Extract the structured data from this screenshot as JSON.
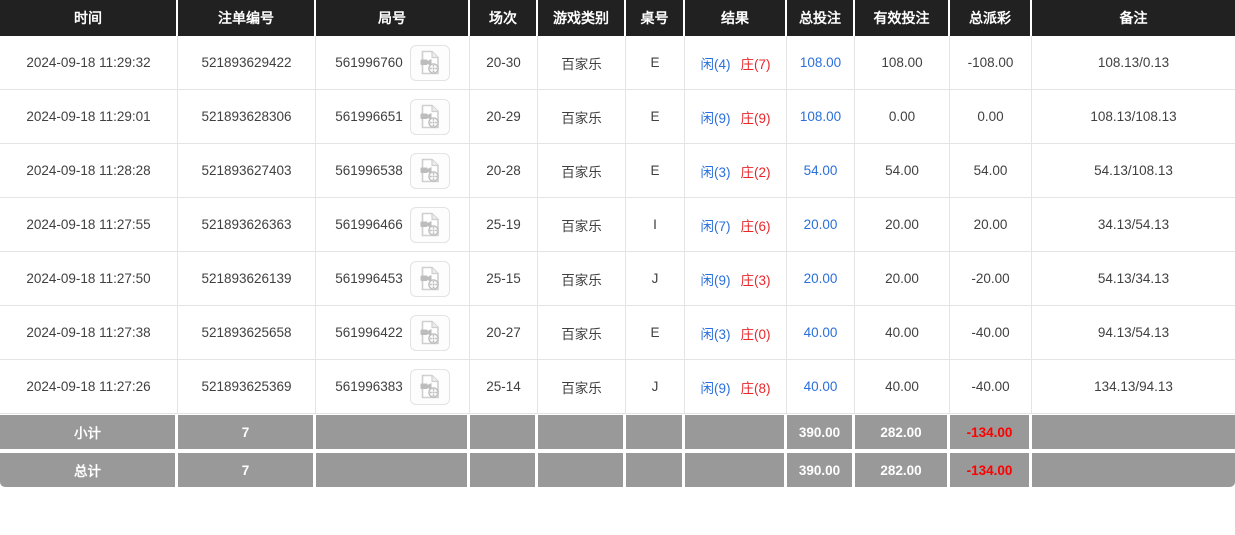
{
  "colors": {
    "header_bg": "#212121",
    "header_text": "#ffffff",
    "row_text": "#404040",
    "link_blue": "#2a6fdb",
    "negative_red": "#e8262a",
    "summary_bg": "#999999",
    "summary_text": "#ffffff",
    "summary_red": "#ff0000",
    "grid_border": "#e4e4e4"
  },
  "table": {
    "columns": [
      {
        "key": "time",
        "label": "时间"
      },
      {
        "key": "bet-id",
        "label": "注单编号"
      },
      {
        "key": "round-no",
        "label": "局号"
      },
      {
        "key": "session",
        "label": "场次"
      },
      {
        "key": "game-type",
        "label": "游戏类别"
      },
      {
        "key": "table-no",
        "label": "桌号"
      },
      {
        "key": "result",
        "label": "结果"
      },
      {
        "key": "total-bet",
        "label": "总投注"
      },
      {
        "key": "valid-bet",
        "label": "有效投注"
      },
      {
        "key": "total-payout",
        "label": "总派彩"
      },
      {
        "key": "remark",
        "label": "备注"
      }
    ],
    "video_icon": "video-replay-icon",
    "rows": [
      {
        "time": "2024-09-18 11:29:32",
        "bet_id": "521893629422",
        "round_no": "561996760",
        "session": "20-30",
        "game_type": "百家乐",
        "table_no": "E",
        "result": {
          "player": "闲(4)",
          "banker": "庄(7)"
        },
        "total_bet": "108.00",
        "valid_bet": "108.00",
        "total_payout": "-108.00",
        "remark": "108.13/0.13"
      },
      {
        "time": "2024-09-18 11:29:01",
        "bet_id": "521893628306",
        "round_no": "561996651",
        "session": "20-29",
        "game_type": "百家乐",
        "table_no": "E",
        "result": {
          "player": "闲(9)",
          "banker": "庄(9)"
        },
        "total_bet": "108.00",
        "valid_bet": "0.00",
        "total_payout": "0.00",
        "remark": "108.13/108.13"
      },
      {
        "time": "2024-09-18 11:28:28",
        "bet_id": "521893627403",
        "round_no": "561996538",
        "session": "20-28",
        "game_type": "百家乐",
        "table_no": "E",
        "result": {
          "player": "闲(3)",
          "banker": "庄(2)"
        },
        "total_bet": "54.00",
        "valid_bet": "54.00",
        "total_payout": "54.00",
        "remark": "54.13/108.13"
      },
      {
        "time": "2024-09-18 11:27:55",
        "bet_id": "521893626363",
        "round_no": "561996466",
        "session": "25-19",
        "game_type": "百家乐",
        "table_no": "I",
        "result": {
          "player": "闲(7)",
          "banker": "庄(6)"
        },
        "total_bet": "20.00",
        "valid_bet": "20.00",
        "total_payout": "20.00",
        "remark": "34.13/54.13"
      },
      {
        "time": "2024-09-18 11:27:50",
        "bet_id": "521893626139",
        "round_no": "561996453",
        "session": "25-15",
        "game_type": "百家乐",
        "table_no": "J",
        "result": {
          "player": "闲(9)",
          "banker": "庄(3)"
        },
        "total_bet": "20.00",
        "valid_bet": "20.00",
        "total_payout": "-20.00",
        "remark": "54.13/34.13"
      },
      {
        "time": "2024-09-18 11:27:38",
        "bet_id": "521893625658",
        "round_no": "561996422",
        "session": "20-27",
        "game_type": "百家乐",
        "table_no": "E",
        "result": {
          "player": "闲(3)",
          "banker": "庄(0)"
        },
        "total_bet": "40.00",
        "valid_bet": "40.00",
        "total_payout": "-40.00",
        "remark": "94.13/54.13"
      },
      {
        "time": "2024-09-18 11:27:26",
        "bet_id": "521893625369",
        "round_no": "561996383",
        "session": "25-14",
        "game_type": "百家乐",
        "table_no": "J",
        "result": {
          "player": "闲(9)",
          "banker": "庄(8)"
        },
        "total_bet": "40.00",
        "valid_bet": "40.00",
        "total_payout": "-40.00",
        "remark": "134.13/94.13"
      }
    ],
    "summary_rows": [
      {
        "label": "小计",
        "bet_count": "7",
        "total_bet": "390.00",
        "valid_bet": "282.00",
        "total_payout": "-134.00"
      },
      {
        "label": "总计",
        "bet_count": "7",
        "total_bet": "390.00",
        "valid_bet": "282.00",
        "total_payout": "-134.00"
      }
    ]
  }
}
